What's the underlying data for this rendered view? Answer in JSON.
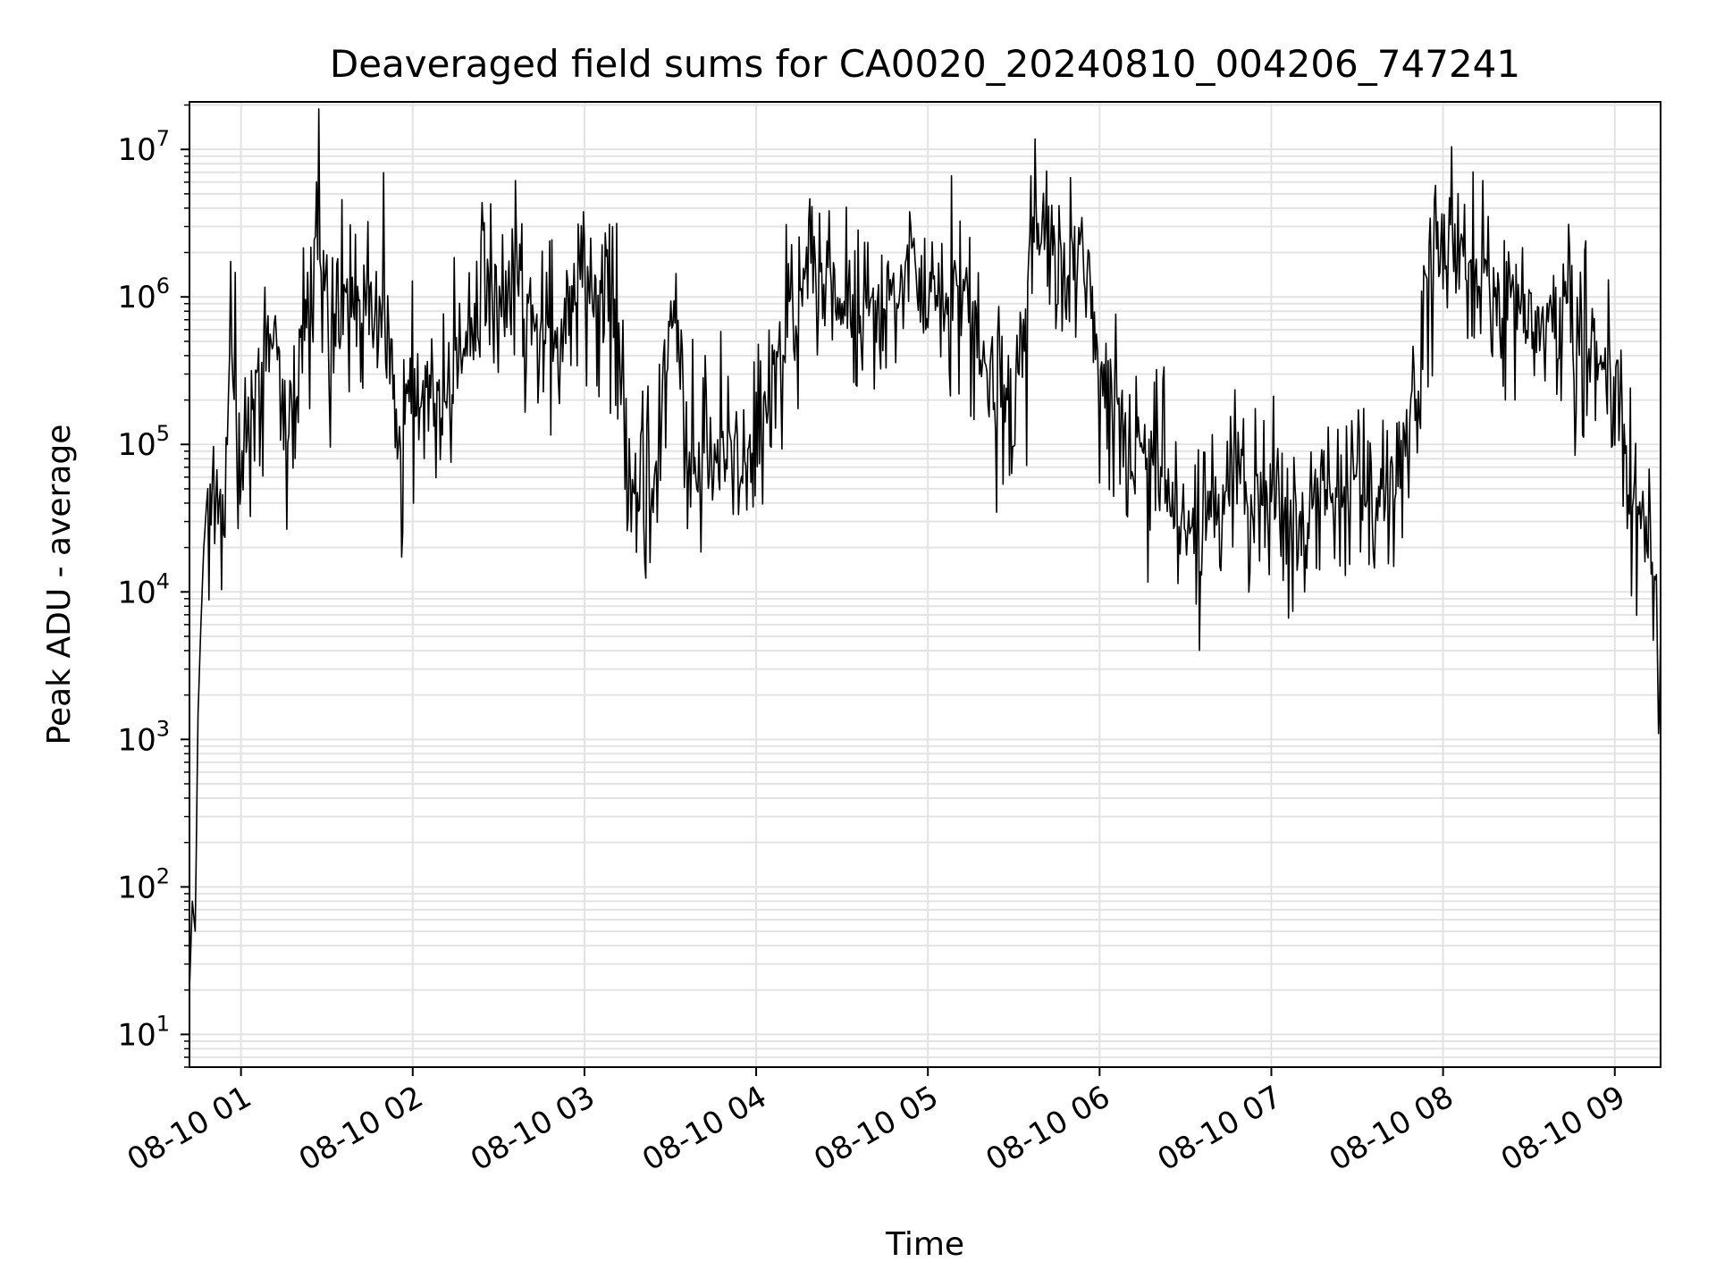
{
  "chart_data": {
    "type": "line",
    "title": "Deaveraged field sums for CA0020_20240810_004206_747241",
    "xlabel": "Time",
    "ylabel": "Peak ADU - average",
    "yscale": "log",
    "ylim": [
      6,
      21000000
    ],
    "xlim": [
      "2024-08-10 00:42",
      "2024-08-10 09:16"
    ],
    "grid": true,
    "line_color": "#000000",
    "grid_color": "#e3e3e3",
    "x_ticks": [
      {
        "value": "2024-08-10 01:00",
        "label": "08-10 01"
      },
      {
        "value": "2024-08-10 02:00",
        "label": "08-10 02"
      },
      {
        "value": "2024-08-10 03:00",
        "label": "08-10 03"
      },
      {
        "value": "2024-08-10 04:00",
        "label": "08-10 04"
      },
      {
        "value": "2024-08-10 05:00",
        "label": "08-10 05"
      },
      {
        "value": "2024-08-10 06:00",
        "label": "08-10 06"
      },
      {
        "value": "2024-08-10 07:00",
        "label": "08-10 07"
      },
      {
        "value": "2024-08-10 08:00",
        "label": "08-10 08"
      },
      {
        "value": "2024-08-10 09:00",
        "label": "08-10 09"
      }
    ],
    "y_ticks": [
      {
        "value": 10,
        "base": "10",
        "exp": "1"
      },
      {
        "value": 100,
        "base": "10",
        "exp": "2"
      },
      {
        "value": 1000,
        "base": "10",
        "exp": "3"
      },
      {
        "value": 10000,
        "base": "10",
        "exp": "4"
      },
      {
        "value": 100000,
        "base": "10",
        "exp": "5"
      },
      {
        "value": 1000000,
        "base": "10",
        "exp": "6"
      },
      {
        "value": 10000000,
        "base": "10",
        "exp": "7"
      }
    ],
    "series": [
      {
        "x": [
          "2024-08-10 00:42",
          "2024-08-10 00:43",
          "2024-08-10 00:44",
          "2024-08-10 00:45",
          "2024-08-10 00:46",
          "2024-08-10 00:47",
          "2024-08-10 00:48",
          "2024-08-10 00:50",
          "2024-08-10 00:52",
          "2024-08-10 00:54",
          "2024-08-10 00:56",
          "2024-08-10 00:58",
          "2024-08-10 00:59",
          "2024-08-10 01:00",
          "2024-08-10 01:04",
          "2024-08-10 01:08",
          "2024-08-10 01:12",
          "2024-08-10 01:16",
          "2024-08-10 01:20",
          "2024-08-10 01:24",
          "2024-08-10 01:26",
          "2024-08-10 01:28",
          "2024-08-10 01:30",
          "2024-08-10 01:32",
          "2024-08-10 01:36",
          "2024-08-10 01:40",
          "2024-08-10 01:44",
          "2024-08-10 01:48",
          "2024-08-10 01:52",
          "2024-08-10 01:55",
          "2024-08-10 01:58",
          "2024-08-10 02:04",
          "2024-08-10 02:10",
          "2024-08-10 02:16",
          "2024-08-10 02:22",
          "2024-08-10 02:28",
          "2024-08-10 02:34",
          "2024-08-10 02:40",
          "2024-08-10 02:46",
          "2024-08-10 02:52",
          "2024-08-10 02:56",
          "2024-08-10 03:00",
          "2024-08-10 03:04",
          "2024-08-10 03:08",
          "2024-08-10 03:12",
          "2024-08-10 03:16",
          "2024-08-10 03:20",
          "2024-08-10 03:24",
          "2024-08-10 03:28",
          "2024-08-10 03:32",
          "2024-08-10 03:36",
          "2024-08-10 03:40",
          "2024-08-10 03:44",
          "2024-08-10 03:48",
          "2024-08-10 03:52",
          "2024-08-10 03:56",
          "2024-08-10 04:00",
          "2024-08-10 04:06",
          "2024-08-10 04:12",
          "2024-08-10 04:18",
          "2024-08-10 04:24",
          "2024-08-10 04:30",
          "2024-08-10 04:36",
          "2024-08-10 04:42",
          "2024-08-10 04:48",
          "2024-08-10 04:54",
          "2024-08-10 05:00",
          "2024-08-10 05:06",
          "2024-08-10 05:12",
          "2024-08-10 05:18",
          "2024-08-10 05:24",
          "2024-08-10 05:30",
          "2024-08-10 05:36",
          "2024-08-10 05:40",
          "2024-08-10 05:44",
          "2024-08-10 05:48",
          "2024-08-10 05:52",
          "2024-08-10 05:56",
          "2024-08-10 06:00",
          "2024-08-10 06:06",
          "2024-08-10 06:12",
          "2024-08-10 06:18",
          "2024-08-10 06:24",
          "2024-08-10 06:30",
          "2024-08-10 06:36",
          "2024-08-10 06:42",
          "2024-08-10 06:48",
          "2024-08-10 06:54",
          "2024-08-10 07:00",
          "2024-08-10 07:06",
          "2024-08-10 07:12",
          "2024-08-10 07:18",
          "2024-08-10 07:24",
          "2024-08-10 07:30",
          "2024-08-10 07:36",
          "2024-08-10 07:42",
          "2024-08-10 07:48",
          "2024-08-10 07:54",
          "2024-08-10 08:00",
          "2024-08-10 08:06",
          "2024-08-10 08:12",
          "2024-08-10 08:18",
          "2024-08-10 08:24",
          "2024-08-10 08:30",
          "2024-08-10 08:36",
          "2024-08-10 08:42",
          "2024-08-10 08:48",
          "2024-08-10 08:54",
          "2024-08-10 09:00",
          "2024-08-10 09:04",
          "2024-08-10 09:08",
          "2024-08-10 09:12",
          "2024-08-10 09:16"
        ],
        "y": [
          20,
          80,
          50,
          1500,
          6000,
          20000,
          40000,
          60000,
          50000,
          30000,
          300000,
          400000,
          40000,
          60000,
          200000,
          400000,
          600000,
          150000,
          300000,
          1000000,
          3500000,
          2500000,
          700000,
          400000,
          900000,
          800000,
          1000000,
          600000,
          500000,
          90000,
          250000,
          250000,
          200000,
          300000,
          600000,
          1000000,
          1200000,
          900000,
          600000,
          600000,
          900000,
          1500000,
          900000,
          1000000,
          500000,
          60000,
          50000,
          30000,
          400000,
          700000,
          100000,
          80000,
          100000,
          80000,
          90000,
          60000,
          90000,
          300000,
          600000,
          1400000,
          1000000,
          1000000,
          700000,
          800000,
          1000000,
          1500000,
          1000000,
          1200000,
          1000000,
          500000,
          200000,
          150000,
          3000000,
          3500000,
          3000000,
          2500000,
          2000000,
          1500000,
          300000,
          200000,
          80000,
          90000,
          50000,
          30000,
          20000,
          50000,
          60000,
          40000,
          50000,
          30000,
          30000,
          50000,
          40000,
          50000,
          40000,
          50000,
          100000,
          1500000,
          2500000,
          2000000,
          1500000,
          1200000,
          1000000,
          700000,
          500000,
          600000,
          500000,
          400000,
          300000,
          60000,
          30000,
          20000,
          3000
        ]
      }
    ]
  }
}
